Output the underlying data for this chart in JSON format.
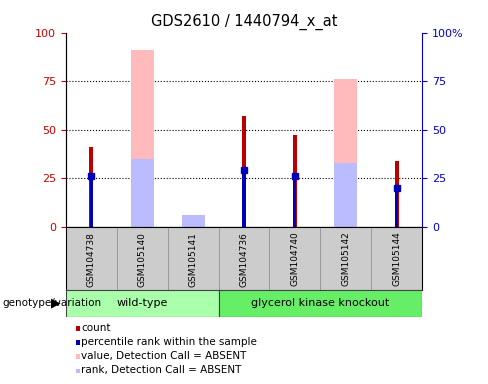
{
  "title": "GDS2610 / 1440794_x_at",
  "samples": [
    "GSM104738",
    "GSM105140",
    "GSM105141",
    "GSM104736",
    "GSM104740",
    "GSM105142",
    "GSM105144"
  ],
  "count_values": [
    41,
    null,
    null,
    57,
    47,
    null,
    34
  ],
  "rank_values": [
    26,
    null,
    null,
    29,
    26,
    null,
    20
  ],
  "absent_value_bars": [
    null,
    91,
    null,
    null,
    null,
    76,
    null
  ],
  "absent_rank_bars": [
    null,
    35,
    6,
    null,
    null,
    33,
    null
  ],
  "ylim": [
    0,
    100
  ],
  "yticks": [
    0,
    25,
    50,
    75,
    100
  ],
  "count_color": "#bb0000",
  "rank_color": "#0000bb",
  "absent_value_color": "#ffbbbb",
  "absent_rank_color": "#bbbbff",
  "wt_color": "#aaffaa",
  "gk_color": "#66ee66",
  "xlabel_bg": "#cccccc",
  "left_axis_color": "#cc0000",
  "right_axis_color": "#0000cc",
  "legend_items": [
    {
      "label": "count",
      "color": "#bb0000"
    },
    {
      "label": "percentile rank within the sample",
      "color": "#0000bb"
    },
    {
      "label": "value, Detection Call = ABSENT",
      "color": "#ffbbbb"
    },
    {
      "label": "rank, Detection Call = ABSENT",
      "color": "#bbbbff"
    }
  ]
}
